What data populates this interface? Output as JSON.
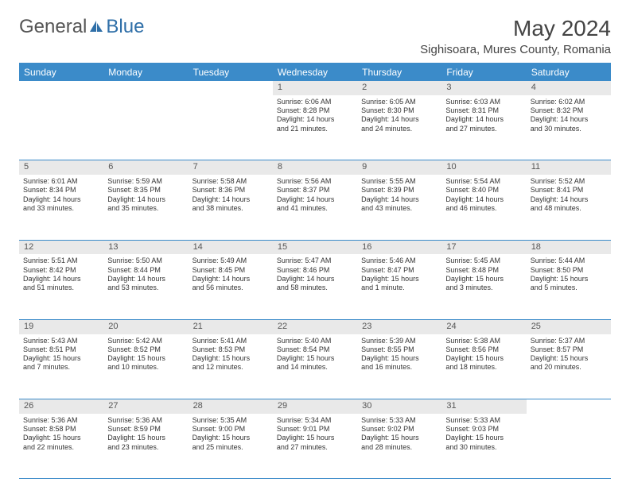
{
  "brand": {
    "part1": "General",
    "part2": "Blue"
  },
  "title": "May 2024",
  "location": "Sighisoara, Mures County, Romania",
  "weekdays": [
    "Sunday",
    "Monday",
    "Tuesday",
    "Wednesday",
    "Thursday",
    "Friday",
    "Saturday"
  ],
  "colors": {
    "header_bg": "#3b8bc9",
    "header_text": "#ffffff",
    "daynum_bg": "#e9e9e9",
    "border": "#3b8bc9",
    "logo_blue": "#2f6fa8",
    "text": "#333333"
  },
  "weeks": [
    [
      null,
      null,
      null,
      {
        "n": "1",
        "sr": "Sunrise: 6:06 AM",
        "ss": "Sunset: 8:28 PM",
        "d1": "Daylight: 14 hours",
        "d2": "and 21 minutes."
      },
      {
        "n": "2",
        "sr": "Sunrise: 6:05 AM",
        "ss": "Sunset: 8:30 PM",
        "d1": "Daylight: 14 hours",
        "d2": "and 24 minutes."
      },
      {
        "n": "3",
        "sr": "Sunrise: 6:03 AM",
        "ss": "Sunset: 8:31 PM",
        "d1": "Daylight: 14 hours",
        "d2": "and 27 minutes."
      },
      {
        "n": "4",
        "sr": "Sunrise: 6:02 AM",
        "ss": "Sunset: 8:32 PM",
        "d1": "Daylight: 14 hours",
        "d2": "and 30 minutes."
      }
    ],
    [
      {
        "n": "5",
        "sr": "Sunrise: 6:01 AM",
        "ss": "Sunset: 8:34 PM",
        "d1": "Daylight: 14 hours",
        "d2": "and 33 minutes."
      },
      {
        "n": "6",
        "sr": "Sunrise: 5:59 AM",
        "ss": "Sunset: 8:35 PM",
        "d1": "Daylight: 14 hours",
        "d2": "and 35 minutes."
      },
      {
        "n": "7",
        "sr": "Sunrise: 5:58 AM",
        "ss": "Sunset: 8:36 PM",
        "d1": "Daylight: 14 hours",
        "d2": "and 38 minutes."
      },
      {
        "n": "8",
        "sr": "Sunrise: 5:56 AM",
        "ss": "Sunset: 8:37 PM",
        "d1": "Daylight: 14 hours",
        "d2": "and 41 minutes."
      },
      {
        "n": "9",
        "sr": "Sunrise: 5:55 AM",
        "ss": "Sunset: 8:39 PM",
        "d1": "Daylight: 14 hours",
        "d2": "and 43 minutes."
      },
      {
        "n": "10",
        "sr": "Sunrise: 5:54 AM",
        "ss": "Sunset: 8:40 PM",
        "d1": "Daylight: 14 hours",
        "d2": "and 46 minutes."
      },
      {
        "n": "11",
        "sr": "Sunrise: 5:52 AM",
        "ss": "Sunset: 8:41 PM",
        "d1": "Daylight: 14 hours",
        "d2": "and 48 minutes."
      }
    ],
    [
      {
        "n": "12",
        "sr": "Sunrise: 5:51 AM",
        "ss": "Sunset: 8:42 PM",
        "d1": "Daylight: 14 hours",
        "d2": "and 51 minutes."
      },
      {
        "n": "13",
        "sr": "Sunrise: 5:50 AM",
        "ss": "Sunset: 8:44 PM",
        "d1": "Daylight: 14 hours",
        "d2": "and 53 minutes."
      },
      {
        "n": "14",
        "sr": "Sunrise: 5:49 AM",
        "ss": "Sunset: 8:45 PM",
        "d1": "Daylight: 14 hours",
        "d2": "and 56 minutes."
      },
      {
        "n": "15",
        "sr": "Sunrise: 5:47 AM",
        "ss": "Sunset: 8:46 PM",
        "d1": "Daylight: 14 hours",
        "d2": "and 58 minutes."
      },
      {
        "n": "16",
        "sr": "Sunrise: 5:46 AM",
        "ss": "Sunset: 8:47 PM",
        "d1": "Daylight: 15 hours",
        "d2": "and 1 minute."
      },
      {
        "n": "17",
        "sr": "Sunrise: 5:45 AM",
        "ss": "Sunset: 8:48 PM",
        "d1": "Daylight: 15 hours",
        "d2": "and 3 minutes."
      },
      {
        "n": "18",
        "sr": "Sunrise: 5:44 AM",
        "ss": "Sunset: 8:50 PM",
        "d1": "Daylight: 15 hours",
        "d2": "and 5 minutes."
      }
    ],
    [
      {
        "n": "19",
        "sr": "Sunrise: 5:43 AM",
        "ss": "Sunset: 8:51 PM",
        "d1": "Daylight: 15 hours",
        "d2": "and 7 minutes."
      },
      {
        "n": "20",
        "sr": "Sunrise: 5:42 AM",
        "ss": "Sunset: 8:52 PM",
        "d1": "Daylight: 15 hours",
        "d2": "and 10 minutes."
      },
      {
        "n": "21",
        "sr": "Sunrise: 5:41 AM",
        "ss": "Sunset: 8:53 PM",
        "d1": "Daylight: 15 hours",
        "d2": "and 12 minutes."
      },
      {
        "n": "22",
        "sr": "Sunrise: 5:40 AM",
        "ss": "Sunset: 8:54 PM",
        "d1": "Daylight: 15 hours",
        "d2": "and 14 minutes."
      },
      {
        "n": "23",
        "sr": "Sunrise: 5:39 AM",
        "ss": "Sunset: 8:55 PM",
        "d1": "Daylight: 15 hours",
        "d2": "and 16 minutes."
      },
      {
        "n": "24",
        "sr": "Sunrise: 5:38 AM",
        "ss": "Sunset: 8:56 PM",
        "d1": "Daylight: 15 hours",
        "d2": "and 18 minutes."
      },
      {
        "n": "25",
        "sr": "Sunrise: 5:37 AM",
        "ss": "Sunset: 8:57 PM",
        "d1": "Daylight: 15 hours",
        "d2": "and 20 minutes."
      }
    ],
    [
      {
        "n": "26",
        "sr": "Sunrise: 5:36 AM",
        "ss": "Sunset: 8:58 PM",
        "d1": "Daylight: 15 hours",
        "d2": "and 22 minutes."
      },
      {
        "n": "27",
        "sr": "Sunrise: 5:36 AM",
        "ss": "Sunset: 8:59 PM",
        "d1": "Daylight: 15 hours",
        "d2": "and 23 minutes."
      },
      {
        "n": "28",
        "sr": "Sunrise: 5:35 AM",
        "ss": "Sunset: 9:00 PM",
        "d1": "Daylight: 15 hours",
        "d2": "and 25 minutes."
      },
      {
        "n": "29",
        "sr": "Sunrise: 5:34 AM",
        "ss": "Sunset: 9:01 PM",
        "d1": "Daylight: 15 hours",
        "d2": "and 27 minutes."
      },
      {
        "n": "30",
        "sr": "Sunrise: 5:33 AM",
        "ss": "Sunset: 9:02 PM",
        "d1": "Daylight: 15 hours",
        "d2": "and 28 minutes."
      },
      {
        "n": "31",
        "sr": "Sunrise: 5:33 AM",
        "ss": "Sunset: 9:03 PM",
        "d1": "Daylight: 15 hours",
        "d2": "and 30 minutes."
      },
      null
    ]
  ]
}
